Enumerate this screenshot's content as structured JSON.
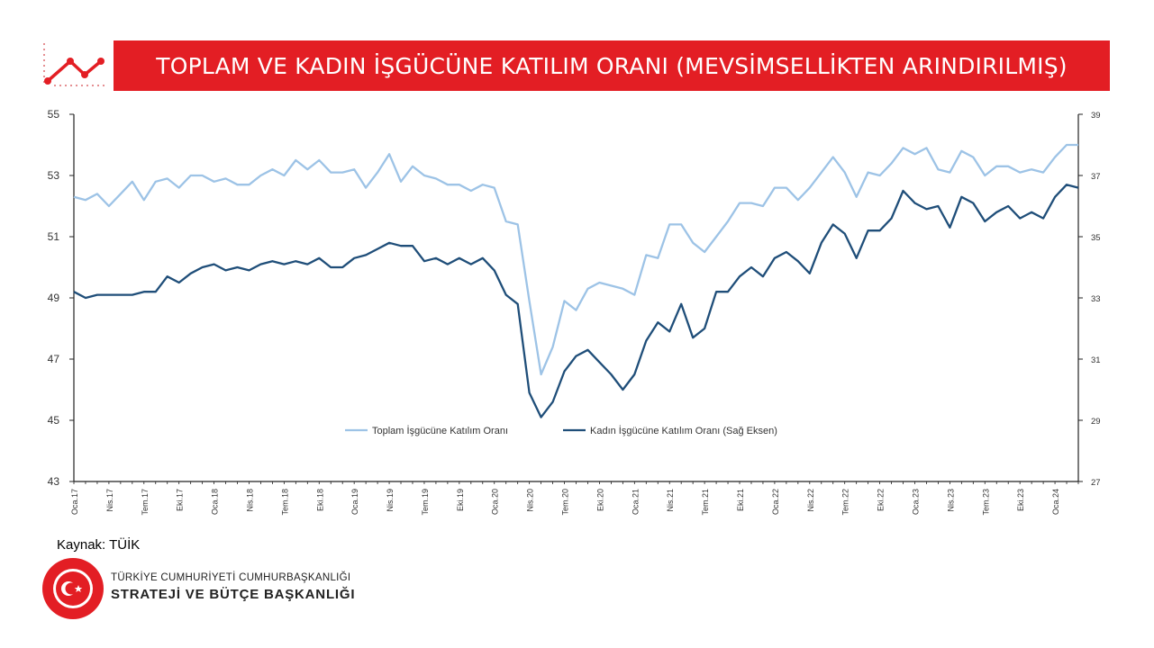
{
  "title": "TOPLAM VE KADIN İŞGÜCÜNE KATILIM ORANI (MEVSİMSELLİKTEN ARINDIRILMIŞ)",
  "source": "Kaynak: TÜİK",
  "org": {
    "line1": "TÜRKİYE CUMHURİYETİ CUMHURBAŞKANLIĞI",
    "line2": "STRATEJİ VE BÜTÇE BAŞKANLIĞI",
    "seal_text": "T.C. CUMHURBAŞKANLIĞI STRATEJİ VE BÜTÇE BAŞKANLIĞI"
  },
  "colors": {
    "accent": "#e31e24",
    "total": "#9dc3e6",
    "women": "#1f4e79",
    "axis": "#222222"
  },
  "chart_data": {
    "type": "line",
    "title": "TOPLAM VE KADIN İŞGÜCÜNE KATILIM ORANI (MEVSİMSELLİKTEN ARINDIRILMIŞ)",
    "x_tick_labels": [
      "Oca.17",
      "Nis.17",
      "Tem.17",
      "Eki.17",
      "Oca.18",
      "Nis.18",
      "Tem.18",
      "Eki.18",
      "Oca.19",
      "Nis.19",
      "Tem.19",
      "Eki.19",
      "Oca.20",
      "Nis.20",
      "Tem.20",
      "Eki.20",
      "Oca.21",
      "Nis.21",
      "Tem.21",
      "Eki.21",
      "Oca.22",
      "Nis.22",
      "Tem.22",
      "Eki.22",
      "Oca.23",
      "Nis.23",
      "Tem.23",
      "Eki.23",
      "Oca.24"
    ],
    "x_start": "2017-01",
    "x_end": "2024-03",
    "y_left": {
      "min": 43,
      "max": 55,
      "ticks": [
        43,
        45,
        47,
        49,
        51,
        53,
        55
      ]
    },
    "y_right": {
      "min": 27,
      "max": 39,
      "ticks": [
        27,
        29,
        31,
        33,
        35,
        37,
        39
      ]
    },
    "grid": false,
    "legend_position": "bottom",
    "series": [
      {
        "name": "Toplam İşgücüne Katılım Oranı",
        "axis": "left",
        "values": [
          52.3,
          52.2,
          52.4,
          52.0,
          52.4,
          52.8,
          52.2,
          52.8,
          52.9,
          52.6,
          53.0,
          53.0,
          52.8,
          52.9,
          52.7,
          52.7,
          53.0,
          53.2,
          53.0,
          53.5,
          53.2,
          53.5,
          53.1,
          53.1,
          53.2,
          52.6,
          53.1,
          53.7,
          52.8,
          53.3,
          53.0,
          52.9,
          52.7,
          52.7,
          52.5,
          52.7,
          52.6,
          51.5,
          51.4,
          48.9,
          46.5,
          47.4,
          48.9,
          48.6,
          49.3,
          49.5,
          49.4,
          49.3,
          49.1,
          50.4,
          50.3,
          51.4,
          51.4,
          50.8,
          50.5,
          51.0,
          51.5,
          52.1,
          52.1,
          52.0,
          52.6,
          52.6,
          52.2,
          52.6,
          53.1,
          53.6,
          53.1,
          52.3,
          53.1,
          53.0,
          53.4,
          53.9,
          53.7,
          53.9,
          53.2,
          53.1,
          53.8,
          53.6,
          53.0,
          53.3,
          53.3,
          53.1,
          53.2,
          53.1,
          53.6,
          54.0,
          54.0
        ]
      },
      {
        "name": "Kadın İşgücüne Katılım Oranı (Sağ Eksen)",
        "axis": "right",
        "values": [
          33.2,
          33.0,
          33.1,
          33.1,
          33.1,
          33.1,
          33.2,
          33.2,
          33.7,
          33.5,
          33.8,
          34.0,
          34.1,
          33.9,
          34.0,
          33.9,
          34.1,
          34.2,
          34.1,
          34.2,
          34.1,
          34.3,
          34.0,
          34.0,
          34.3,
          34.4,
          34.6,
          34.8,
          34.7,
          34.7,
          34.2,
          34.3,
          34.1,
          34.3,
          34.1,
          34.3,
          33.9,
          33.1,
          32.8,
          29.9,
          29.1,
          29.6,
          30.6,
          31.1,
          31.3,
          30.9,
          30.5,
          30.0,
          30.5,
          31.6,
          32.2,
          31.9,
          32.8,
          31.7,
          32.0,
          33.2,
          33.2,
          33.7,
          34.0,
          33.7,
          34.3,
          34.5,
          34.2,
          33.8,
          34.8,
          35.4,
          35.1,
          34.3,
          35.2,
          35.2,
          35.6,
          36.5,
          36.1,
          35.9,
          36.0,
          35.3,
          36.3,
          36.1,
          35.5,
          35.8,
          36.0,
          35.6,
          35.8,
          35.6,
          36.3,
          36.7,
          36.6
        ]
      }
    ]
  }
}
